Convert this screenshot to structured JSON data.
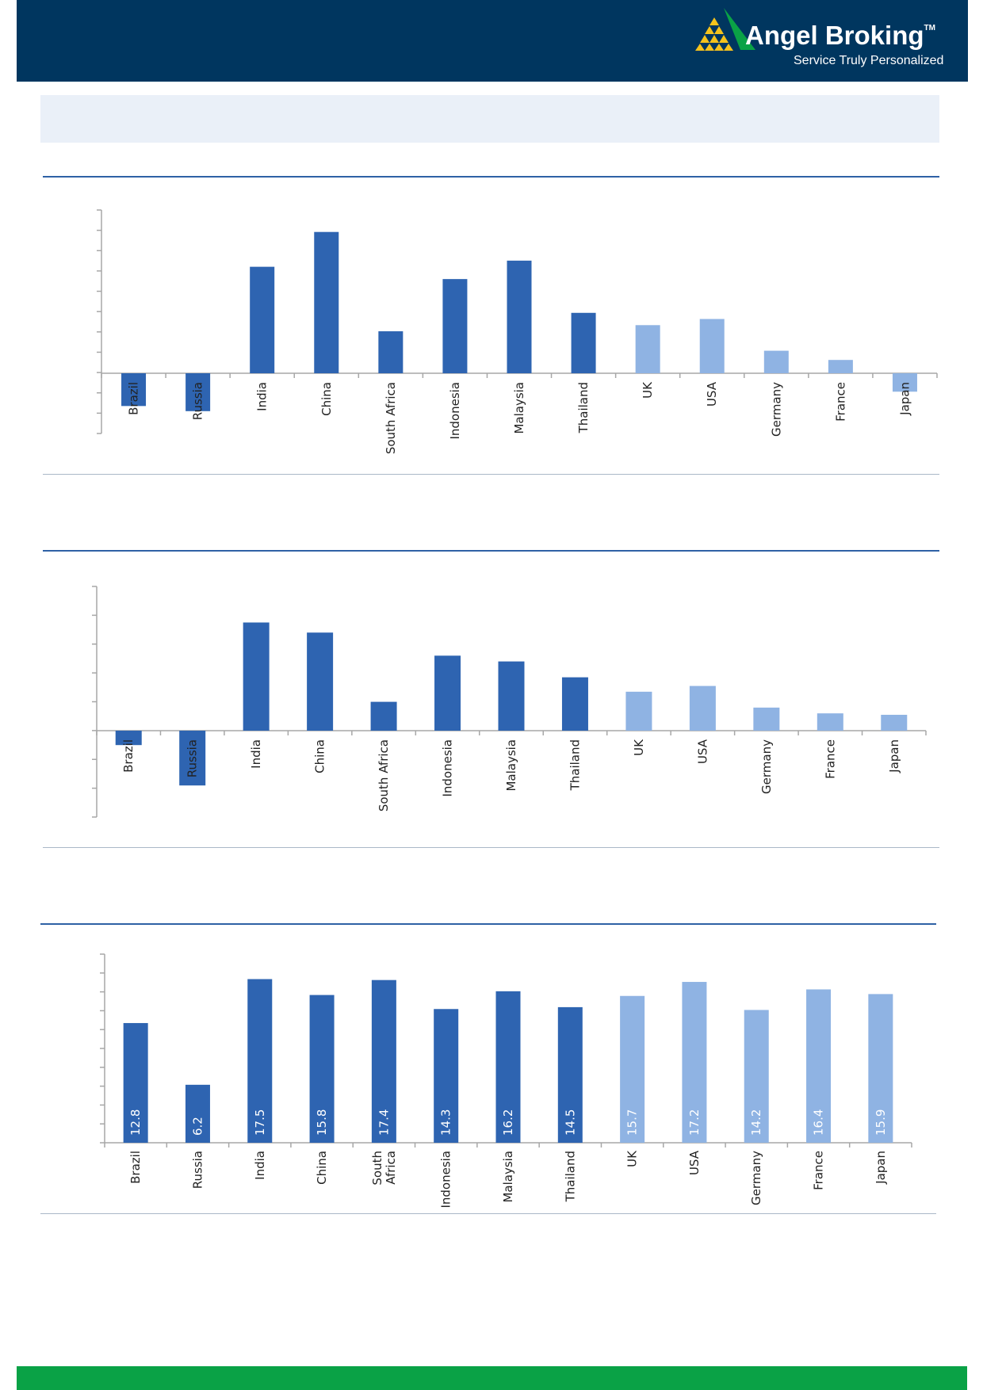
{
  "brand": {
    "name": "Angel Broking",
    "trademark": "TM",
    "tagline": "Service Truly Personalized",
    "colors": {
      "header": "#00365f",
      "footer": "#0aa246",
      "logo_green": "#0aa246",
      "logo_yellow": "#f5c31c"
    }
  },
  "chart_data": [
    {
      "type": "bar",
      "categories": [
        "Brazil",
        "Russia",
        "India",
        "China",
        "South Africa",
        "Indonesia",
        "Malaysia",
        "Thailand",
        "UK",
        "USA",
        "Germany",
        "France",
        "Japan"
      ],
      "values": [
        -3.2,
        -3.7,
        10.4,
        13.8,
        4.1,
        9.2,
        11.0,
        5.9,
        4.7,
        5.3,
        2.2,
        1.3,
        -1.8
      ],
      "ylim": [
        -6,
        16
      ],
      "colors": [
        "#2e64b1",
        "#2e64b1",
        "#2e64b1",
        "#2e64b1",
        "#2e64b1",
        "#2e64b1",
        "#2e64b1",
        "#2e64b1",
        "#8fb3e3",
        "#8fb3e3",
        "#8fb3e3",
        "#8fb3e3",
        "#8fb3e3"
      ],
      "grid": false
    },
    {
      "type": "bar",
      "categories": [
        "Brazil",
        "Russia",
        "India",
        "China",
        "South Africa",
        "Indonesia",
        "Malaysia",
        "Thailand",
        "UK",
        "USA",
        "Germany",
        "France",
        "Japan"
      ],
      "values": [
        -1.0,
        -3.8,
        7.5,
        6.8,
        2.0,
        5.2,
        4.8,
        3.7,
        2.7,
        3.1,
        1.6,
        1.2,
        1.1
      ],
      "ylim": [
        -6,
        10
      ],
      "colors": [
        "#2e64b1",
        "#2e64b1",
        "#2e64b1",
        "#2e64b1",
        "#2e64b1",
        "#2e64b1",
        "#2e64b1",
        "#2e64b1",
        "#8fb3e3",
        "#8fb3e3",
        "#8fb3e3",
        "#8fb3e3",
        "#8fb3e3"
      ],
      "grid": false
    },
    {
      "type": "bar",
      "categories": [
        "Brazil",
        "Russia",
        "India",
        "China",
        "South Africa",
        "Indonesia",
        "Malaysia",
        "Thailand",
        "UK",
        "USA",
        "Germany",
        "France",
        "Japan"
      ],
      "category_lines": [
        [
          "Brazil"
        ],
        [
          "Russia"
        ],
        [
          "India"
        ],
        [
          "China"
        ],
        [
          "South",
          "Africa"
        ],
        [
          "Indonesia"
        ],
        [
          "Malaysia"
        ],
        [
          "Thailand"
        ],
        [
          "UK"
        ],
        [
          "USA"
        ],
        [
          "Germany"
        ],
        [
          "France"
        ],
        [
          "Japan"
        ]
      ],
      "values": [
        12.8,
        6.2,
        17.5,
        15.8,
        17.4,
        14.3,
        16.2,
        14.5,
        15.7,
        17.2,
        14.2,
        16.4,
        15.9
      ],
      "data_labels": [
        "12.8",
        "6.2",
        "17.5",
        "15.8",
        "17.4",
        "14.3",
        "16.2",
        "14.5",
        "15.7",
        "17.2",
        "14.2",
        "16.4",
        "15.9"
      ],
      "ylim": [
        0,
        20
      ],
      "colors": [
        "#2e64b1",
        "#2e64b1",
        "#2e64b1",
        "#2e64b1",
        "#2e64b1",
        "#2e64b1",
        "#2e64b1",
        "#2e64b1",
        "#8fb3e3",
        "#8fb3e3",
        "#8fb3e3",
        "#8fb3e3",
        "#8fb3e3"
      ],
      "grid": false
    }
  ]
}
